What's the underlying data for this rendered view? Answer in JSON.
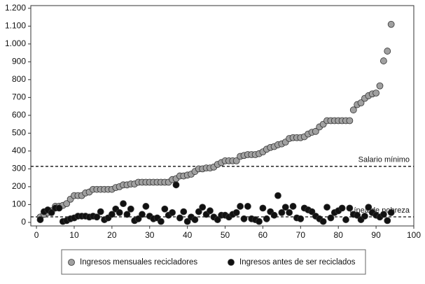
{
  "chart_data": {
    "type": "scatter",
    "x": [
      1,
      2,
      3,
      4,
      5,
      6,
      7,
      8,
      9,
      10,
      11,
      12,
      13,
      14,
      15,
      16,
      17,
      18,
      19,
      20,
      21,
      22,
      23,
      24,
      25,
      26,
      27,
      28,
      29,
      30,
      31,
      32,
      33,
      34,
      35,
      36,
      37,
      38,
      39,
      40,
      41,
      42,
      43,
      44,
      45,
      46,
      47,
      48,
      49,
      50,
      51,
      52,
      53,
      54,
      55,
      56,
      57,
      58,
      59,
      60,
      61,
      62,
      63,
      64,
      65,
      66,
      67,
      68,
      69,
      70,
      71,
      72,
      73,
      74,
      75,
      76,
      77,
      78,
      79,
      80,
      81,
      82,
      83,
      84,
      85,
      86,
      87,
      88,
      89,
      90,
      91,
      92,
      93,
      94
    ],
    "series": [
      {
        "name": "Ingresos mensuales recicladores",
        "color": "#a0a0a0",
        "values": [
          30,
          45,
          55,
          65,
          90,
          90,
          95,
          105,
          130,
          150,
          150,
          150,
          165,
          170,
          185,
          185,
          185,
          185,
          185,
          185,
          195,
          200,
          210,
          210,
          215,
          215,
          225,
          225,
          225,
          225,
          225,
          225,
          225,
          225,
          225,
          240,
          245,
          260,
          260,
          265,
          270,
          285,
          300,
          300,
          305,
          305,
          310,
          325,
          335,
          345,
          345,
          345,
          345,
          370,
          375,
          380,
          380,
          380,
          385,
          395,
          410,
          420,
          425,
          435,
          440,
          450,
          470,
          475,
          475,
          475,
          480,
          495,
          505,
          510,
          535,
          550,
          570,
          570,
          570,
          570,
          570,
          570,
          570,
          630,
          660,
          670,
          695,
          710,
          720,
          725,
          765,
          905,
          960,
          1110
        ]
      },
      {
        "name": "Ingresos antes de ser reciclados",
        "color": "#111111",
        "values": [
          15,
          60,
          70,
          55,
          80,
          80,
          5,
          10,
          20,
          25,
          35,
          35,
          35,
          30,
          35,
          30,
          60,
          15,
          25,
          45,
          75,
          55,
          105,
          45,
          75,
          10,
          20,
          45,
          90,
          35,
          20,
          25,
          5,
          75,
          40,
          55,
          210,
          25,
          60,
          5,
          30,
          15,
          60,
          85,
          45,
          65,
          30,
          15,
          40,
          40,
          30,
          45,
          55,
          90,
          20,
          90,
          20,
          15,
          5,
          80,
          20,
          60,
          40,
          150,
          55,
          85,
          55,
          90,
          25,
          20,
          80,
          70,
          60,
          35,
          20,
          5,
          85,
          25,
          55,
          65,
          80,
          15,
          80,
          45,
          40,
          15,
          35,
          85,
          55,
          40,
          30,
          45,
          10,
          55
        ]
      }
    ],
    "reference_lines": [
      {
        "label": "Salario mínimo",
        "value": 314
      },
      {
        "label": "Línea de pobreza",
        "value": 31
      }
    ],
    "xlim": [
      -1.5,
      100
    ],
    "xticks": [
      0,
      10,
      20,
      30,
      40,
      50,
      60,
      70,
      80,
      90,
      100
    ],
    "ylim": [
      -20,
      1215
    ],
    "yticks": [
      0,
      100,
      200,
      300,
      400,
      500,
      600,
      700,
      800,
      900,
      {
        "value": 1000,
        "label": "1.000"
      },
      {
        "value": 1100,
        "label": "1.100"
      },
      {
        "value": 1200,
        "label": "1.200"
      }
    ]
  }
}
